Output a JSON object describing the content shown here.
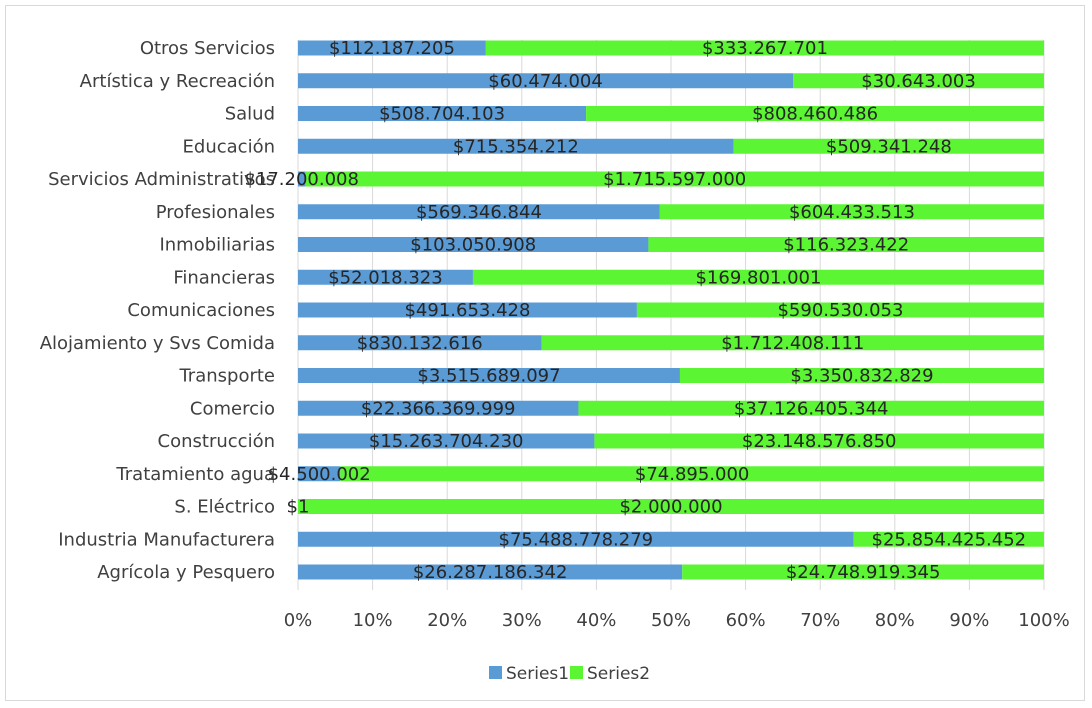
{
  "chart_data": {
    "type": "bar",
    "orientation": "horizontal",
    "stacked": "percent",
    "categories": [
      "Agrícola y Pesquero",
      "Industria Manufacturera",
      "S. Eléctrico",
      "Tratamiento agua",
      "Construcción",
      "Comercio",
      "Transporte",
      "Alojamiento y Svs Comida",
      "Comunicaciones",
      "Financieras",
      "Inmobiliarias",
      "Profesionales",
      "Servicios Administrativos",
      "Educación",
      "Salud",
      "Artística y Recreación",
      "Otros Servicios"
    ],
    "series": [
      {
        "name": "Series1",
        "color": "#5b9bd5",
        "values": [
          26287186342,
          75488778279,
          1,
          4500002,
          15263704230,
          22366369999,
          3515689097,
          830132616,
          491653428,
          52018323,
          103050908,
          569346844,
          17200008,
          715354212,
          508704103,
          60474004,
          112187205
        ],
        "labels": [
          "$26.287.186.342",
          "$75.488.778.279",
          "$1",
          "$4.500.002",
          "$15.263.704.230",
          "$22.366.369.999",
          "$3.515.689.097",
          "$830.132.616",
          "$491.653.428",
          "$52.018.323",
          "$103.050.908",
          "$569.346.844",
          "$17.200.008",
          "$715.354.212",
          "$508.704.103",
          "$60.474.004",
          "$112.187.205"
        ]
      },
      {
        "name": "Series2",
        "color": "#5cf533",
        "values": [
          24748919345,
          25854425452,
          2000000,
          74895000,
          23148576850,
          37126405344,
          3350832829,
          1712408111,
          590530053,
          169801001,
          116323422,
          604433513,
          1715597000,
          509341248,
          808460486,
          30643003,
          333267701
        ],
        "labels": [
          "$24.748.919.345",
          "$25.854.425.452",
          "$2.000.000",
          "$74.895.000",
          "$23.148.576.850",
          "$37.126.405.344",
          "$3.350.832.829",
          "$1.712.408.111",
          "$590.530.053",
          "$169.801.001",
          "$116.323.422",
          "$604.433.513",
          "$1.715.597.000",
          "$509.341.248",
          "$808.460.486",
          "$30.643.003",
          "$333.267.701"
        ]
      }
    ],
    "x_ticks": [
      "0%",
      "10%",
      "20%",
      "30%",
      "40%",
      "50%",
      "60%",
      "70%",
      "80%",
      "90%",
      "100%"
    ],
    "xlim": [
      0,
      100
    ],
    "grid": true,
    "legend": "bottom",
    "gridline_color": "#d9d9d9"
  }
}
